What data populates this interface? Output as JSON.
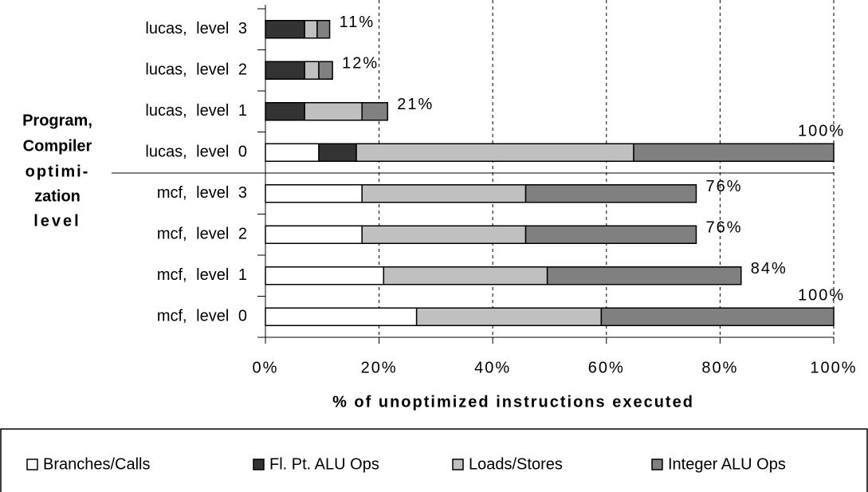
{
  "chart_data": {
    "type": "stacked-barh",
    "categories": [
      "lucas, level 3",
      "lucas, level 2",
      "lucas, level 1",
      "lucas, level 0",
      "mcf, level 3",
      "mcf, level 2",
      "mcf, level 1",
      "mcf, level 0"
    ],
    "series": [
      {
        "name": "Branches/Calls",
        "color": "#ffffff",
        "values": [
          0,
          0,
          0,
          9.4,
          17.0,
          17.0,
          20.8,
          26.6
        ]
      },
      {
        "name": "Fl. Pt. ALU Ops",
        "color": "#333333",
        "values": [
          6.9,
          6.9,
          6.9,
          6.6,
          0,
          0,
          0,
          0
        ]
      },
      {
        "name": "Loads/Stores",
        "color": "#c0c0c0",
        "values": [
          2.2,
          2.5,
          10.1,
          48.8,
          28.8,
          28.8,
          28.8,
          32.5
        ]
      },
      {
        "name": "Integer ALU Ops",
        "color": "#808080",
        "values": [
          2.2,
          2.4,
          4.5,
          35.2,
          30.0,
          30.0,
          34.1,
          40.9
        ]
      }
    ],
    "total_labels": [
      "11%",
      "12%",
      "21%",
      "100%",
      "76%",
      "76%",
      "84%",
      "100%"
    ],
    "xlim": [
      0,
      100
    ],
    "xticks": [
      {
        "value": 0,
        "label": "0%"
      },
      {
        "value": 20,
        "label": "20%"
      },
      {
        "value": 40,
        "label": "40%"
      },
      {
        "value": 60,
        "label": "60%"
      },
      {
        "value": 80,
        "label": "80%"
      },
      {
        "value": 100,
        "label": "100%"
      }
    ],
    "grid": true,
    "x_label": "% of unoptimized instructions executed",
    "y_label": [
      "Program,",
      "Compiler",
      "optimi-",
      "zation",
      "level"
    ],
    "legend": "bottom"
  }
}
